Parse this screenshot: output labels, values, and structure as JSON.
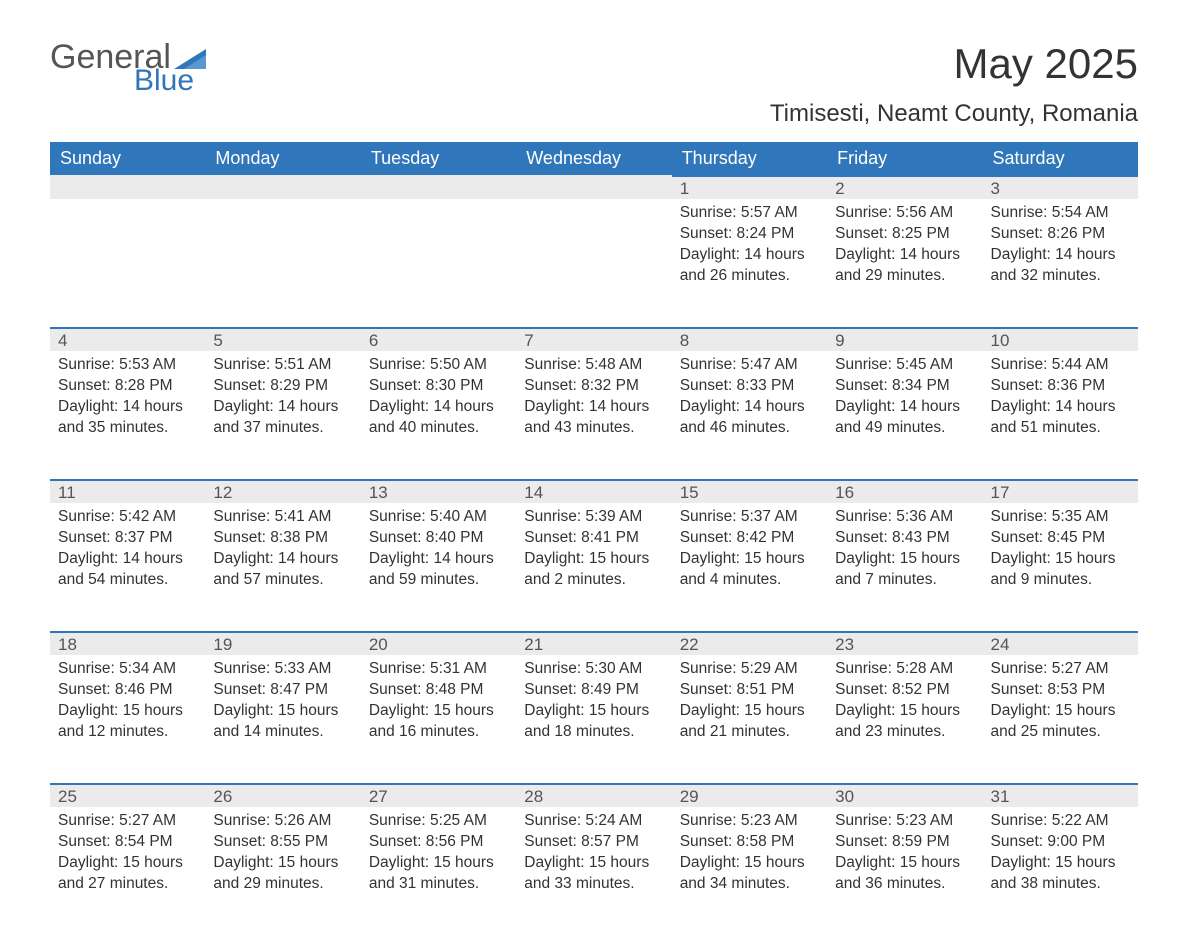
{
  "logo": {
    "word1": "General",
    "word2": "Blue",
    "tri_color": "#2f76bb"
  },
  "title": "May 2025",
  "subtitle": "Timisesti, Neamt County, Romania",
  "colors": {
    "header_bg": "#2f76bb",
    "header_text": "#ffffff",
    "daynum_bg": "#ebebeb",
    "daynum_border": "#2f76bb",
    "body_text": "#333333"
  },
  "dow": [
    "Sunday",
    "Monday",
    "Tuesday",
    "Wednesday",
    "Thursday",
    "Friday",
    "Saturday"
  ],
  "weeks": [
    [
      null,
      null,
      null,
      null,
      {
        "d": "1",
        "sr": "5:57 AM",
        "ss": "8:24 PM",
        "dl": "14 hours and 26 minutes."
      },
      {
        "d": "2",
        "sr": "5:56 AM",
        "ss": "8:25 PM",
        "dl": "14 hours and 29 minutes."
      },
      {
        "d": "3",
        "sr": "5:54 AM",
        "ss": "8:26 PM",
        "dl": "14 hours and 32 minutes."
      }
    ],
    [
      {
        "d": "4",
        "sr": "5:53 AM",
        "ss": "8:28 PM",
        "dl": "14 hours and 35 minutes."
      },
      {
        "d": "5",
        "sr": "5:51 AM",
        "ss": "8:29 PM",
        "dl": "14 hours and 37 minutes."
      },
      {
        "d": "6",
        "sr": "5:50 AM",
        "ss": "8:30 PM",
        "dl": "14 hours and 40 minutes."
      },
      {
        "d": "7",
        "sr": "5:48 AM",
        "ss": "8:32 PM",
        "dl": "14 hours and 43 minutes."
      },
      {
        "d": "8",
        "sr": "5:47 AM",
        "ss": "8:33 PM",
        "dl": "14 hours and 46 minutes."
      },
      {
        "d": "9",
        "sr": "5:45 AM",
        "ss": "8:34 PM",
        "dl": "14 hours and 49 minutes."
      },
      {
        "d": "10",
        "sr": "5:44 AM",
        "ss": "8:36 PM",
        "dl": "14 hours and 51 minutes."
      }
    ],
    [
      {
        "d": "11",
        "sr": "5:42 AM",
        "ss": "8:37 PM",
        "dl": "14 hours and 54 minutes."
      },
      {
        "d": "12",
        "sr": "5:41 AM",
        "ss": "8:38 PM",
        "dl": "14 hours and 57 minutes."
      },
      {
        "d": "13",
        "sr": "5:40 AM",
        "ss": "8:40 PM",
        "dl": "14 hours and 59 minutes."
      },
      {
        "d": "14",
        "sr": "5:39 AM",
        "ss": "8:41 PM",
        "dl": "15 hours and 2 minutes."
      },
      {
        "d": "15",
        "sr": "5:37 AM",
        "ss": "8:42 PM",
        "dl": "15 hours and 4 minutes."
      },
      {
        "d": "16",
        "sr": "5:36 AM",
        "ss": "8:43 PM",
        "dl": "15 hours and 7 minutes."
      },
      {
        "d": "17",
        "sr": "5:35 AM",
        "ss": "8:45 PM",
        "dl": "15 hours and 9 minutes."
      }
    ],
    [
      {
        "d": "18",
        "sr": "5:34 AM",
        "ss": "8:46 PM",
        "dl": "15 hours and 12 minutes."
      },
      {
        "d": "19",
        "sr": "5:33 AM",
        "ss": "8:47 PM",
        "dl": "15 hours and 14 minutes."
      },
      {
        "d": "20",
        "sr": "5:31 AM",
        "ss": "8:48 PM",
        "dl": "15 hours and 16 minutes."
      },
      {
        "d": "21",
        "sr": "5:30 AM",
        "ss": "8:49 PM",
        "dl": "15 hours and 18 minutes."
      },
      {
        "d": "22",
        "sr": "5:29 AM",
        "ss": "8:51 PM",
        "dl": "15 hours and 21 minutes."
      },
      {
        "d": "23",
        "sr": "5:28 AM",
        "ss": "8:52 PM",
        "dl": "15 hours and 23 minutes."
      },
      {
        "d": "24",
        "sr": "5:27 AM",
        "ss": "8:53 PM",
        "dl": "15 hours and 25 minutes."
      }
    ],
    [
      {
        "d": "25",
        "sr": "5:27 AM",
        "ss": "8:54 PM",
        "dl": "15 hours and 27 minutes."
      },
      {
        "d": "26",
        "sr": "5:26 AM",
        "ss": "8:55 PM",
        "dl": "15 hours and 29 minutes."
      },
      {
        "d": "27",
        "sr": "5:25 AM",
        "ss": "8:56 PM",
        "dl": "15 hours and 31 minutes."
      },
      {
        "d": "28",
        "sr": "5:24 AM",
        "ss": "8:57 PM",
        "dl": "15 hours and 33 minutes."
      },
      {
        "d": "29",
        "sr": "5:23 AM",
        "ss": "8:58 PM",
        "dl": "15 hours and 34 minutes."
      },
      {
        "d": "30",
        "sr": "5:23 AM",
        "ss": "8:59 PM",
        "dl": "15 hours and 36 minutes."
      },
      {
        "d": "31",
        "sr": "5:22 AM",
        "ss": "9:00 PM",
        "dl": "15 hours and 38 minutes."
      }
    ]
  ],
  "labels": {
    "sunrise": "Sunrise: ",
    "sunset": "Sunset: ",
    "daylight": "Daylight: "
  }
}
